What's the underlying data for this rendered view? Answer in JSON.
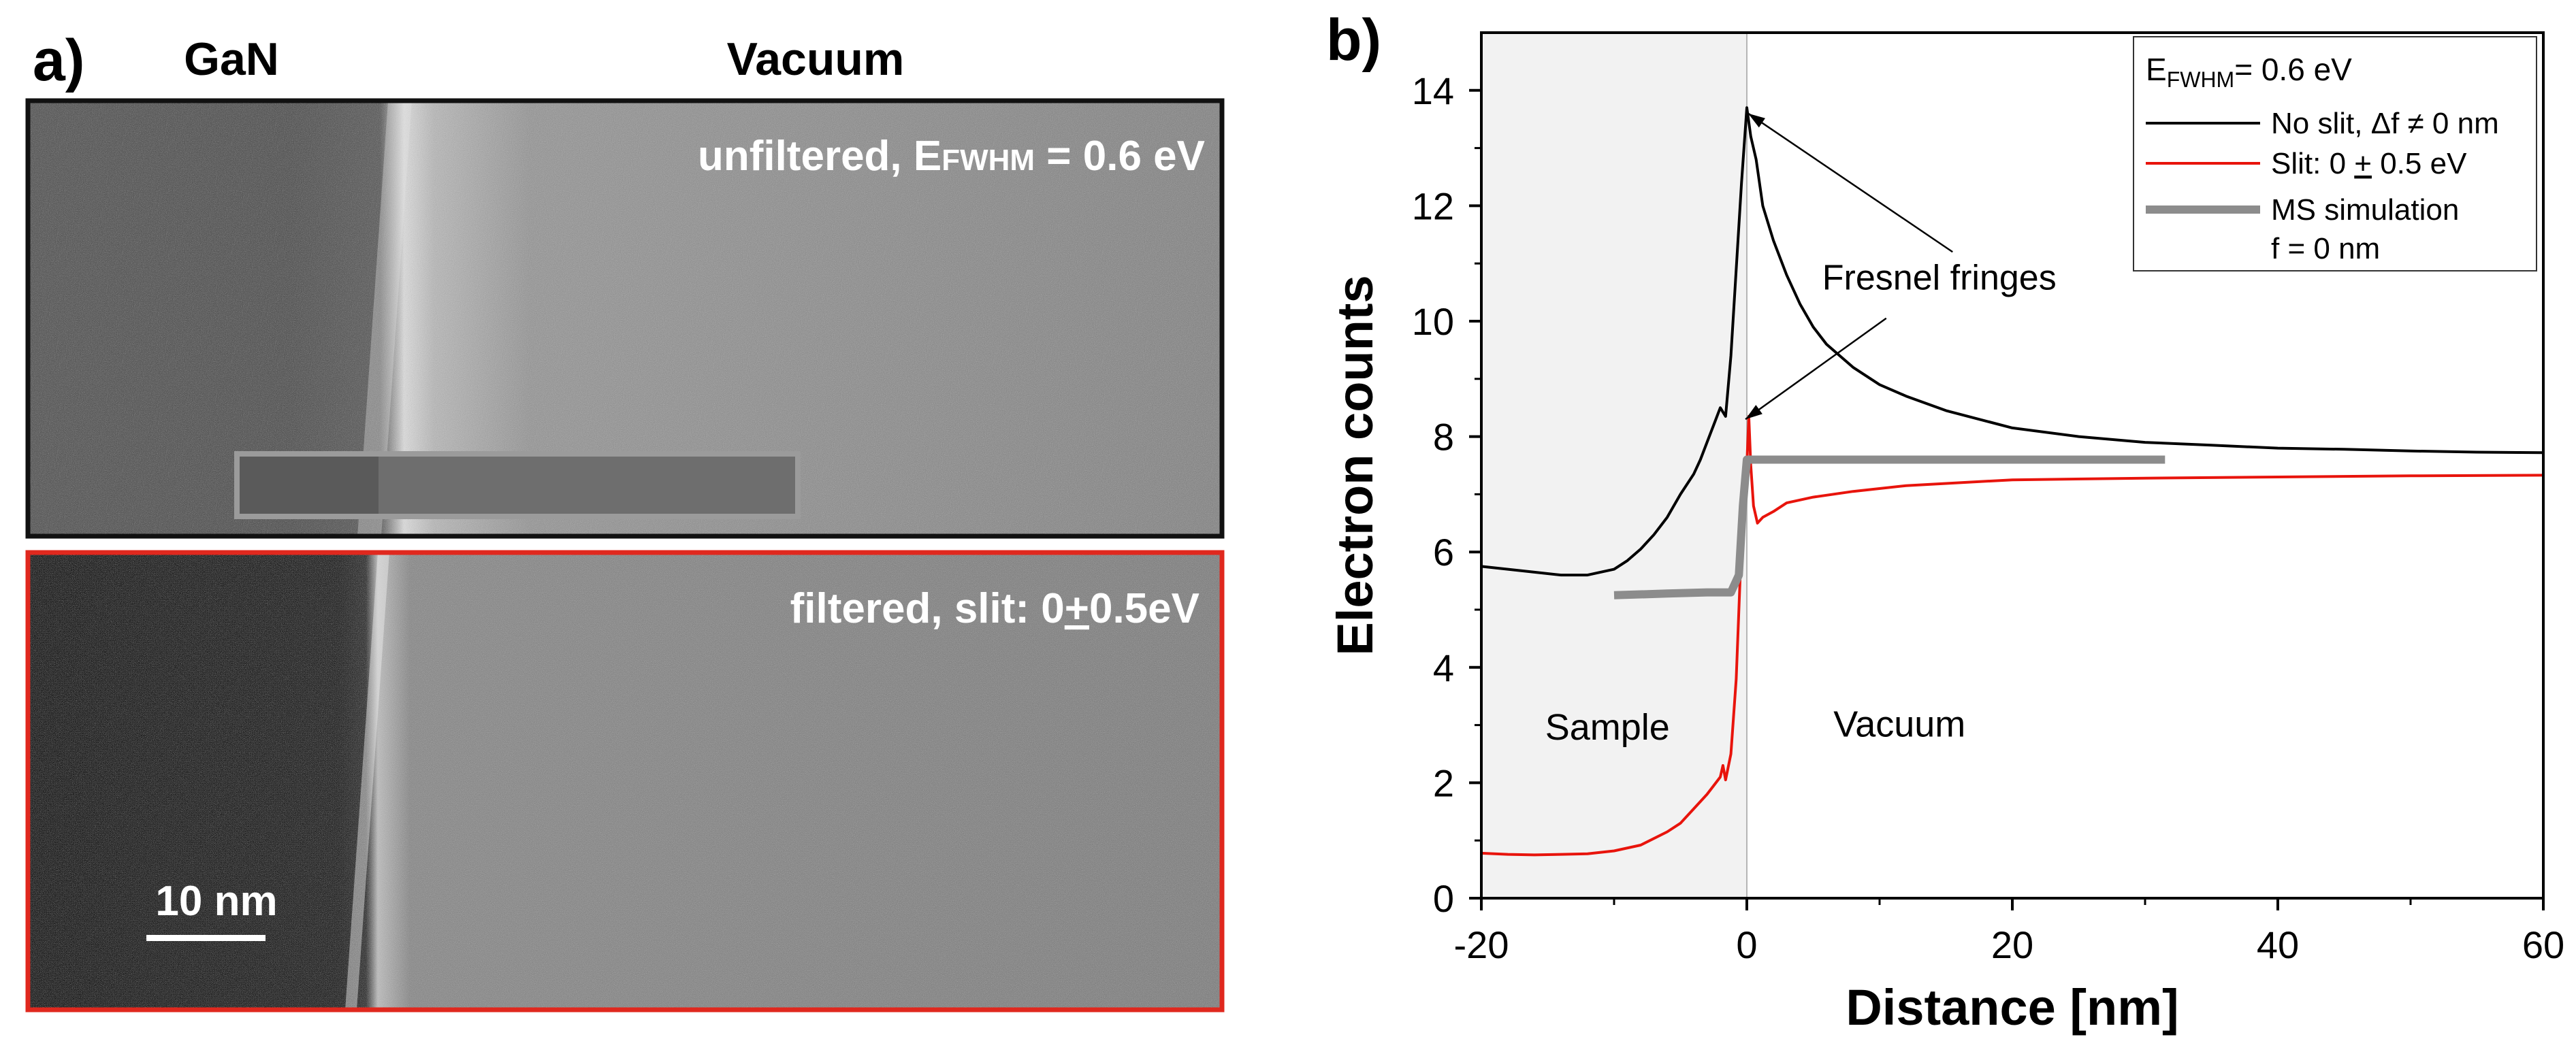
{
  "panel_a": {
    "label": "a)",
    "header_left": "GaN",
    "header_right": "Vacuum",
    "top_image": {
      "caption_prefix": "unfiltered, E",
      "caption_sub": "FWHM",
      "caption_suffix": " = 0.6 eV",
      "border_color": "#111111"
    },
    "bottom_image": {
      "caption_prefix": "filtered,  slit: 0",
      "caption_pm": "+",
      "caption_suffix": "0.5eV",
      "border_color": "#e0281e"
    },
    "scale_bar": "10 nm"
  },
  "chart_data": {
    "type": "line",
    "panel_label": "b)",
    "xlabel": "Distance [nm]",
    "ylabel": "Electron counts",
    "xlim": [
      -20,
      60
    ],
    "ylim": [
      0,
      15
    ],
    "xticks": [
      -20,
      0,
      20,
      40,
      60
    ],
    "yticks": [
      0,
      2,
      4,
      6,
      8,
      10,
      12,
      14
    ],
    "shaded_region": {
      "x": [
        -20,
        0
      ],
      "label_left": "Sample",
      "label_right": "Vacuum"
    },
    "legend": {
      "title_prefix": "E",
      "title_sub": "FWHM",
      "title_suffix": "= 0.6 eV",
      "entries": [
        {
          "name": "No slit, Δf ≠ 0 nm",
          "color": "#000000"
        },
        {
          "name": "Slit: 0 ± 0.5 eV",
          "name_pre": "Slit: 0 ",
          "name_pm": "+",
          "name_post": " 0.5 eV",
          "color": "#e8140c"
        },
        {
          "name": "MS simulation",
          "extra": "f = 0 nm",
          "color": "#8c8c8c"
        }
      ]
    },
    "annotation": {
      "text": "Fresnel fringes",
      "arrows_to": [
        [
          0.1,
          13.6
        ],
        [
          -0.1,
          8.3
        ]
      ]
    },
    "series": [
      {
        "name": "No slit",
        "color": "#000000",
        "x": [
          -20,
          -18,
          -16,
          -14,
          -12,
          -10,
          -9,
          -8,
          -7,
          -6,
          -5,
          -4,
          -3.5,
          -3,
          -2.5,
          -2,
          -1.6,
          -1.2,
          -0.8,
          -0.4,
          0,
          0.3,
          0.7,
          1.2,
          2,
          3,
          4,
          5,
          6,
          8,
          10,
          12,
          15,
          20,
          25,
          30,
          35,
          40,
          45,
          50,
          55,
          60
        ],
        "y": [
          5.75,
          5.7,
          5.65,
          5.6,
          5.6,
          5.7,
          5.85,
          6.05,
          6.3,
          6.6,
          7.0,
          7.35,
          7.6,
          7.9,
          8.2,
          8.5,
          8.35,
          9.4,
          10.9,
          12.4,
          13.7,
          13.2,
          12.8,
          12.0,
          11.4,
          10.8,
          10.3,
          9.9,
          9.6,
          9.2,
          8.9,
          8.7,
          8.45,
          8.15,
          8.0,
          7.9,
          7.85,
          7.8,
          7.78,
          7.75,
          7.73,
          7.72
        ]
      },
      {
        "name": "Slit",
        "color": "#e8140c",
        "x": [
          -20,
          -18,
          -16,
          -14,
          -12,
          -10,
          -8,
          -6,
          -5,
          -4,
          -3,
          -2.5,
          -2,
          -1.8,
          -1.6,
          -1.2,
          -0.8,
          -0.5,
          -0.2,
          0,
          0.15,
          0.3,
          0.5,
          0.8,
          1.2,
          2,
          3,
          5,
          8,
          12,
          20,
          30,
          40,
          50,
          60
        ],
        "y": [
          0.78,
          0.76,
          0.75,
          0.76,
          0.77,
          0.82,
          0.92,
          1.15,
          1.3,
          1.55,
          1.8,
          1.95,
          2.1,
          2.3,
          2.05,
          2.5,
          3.8,
          5.6,
          7.0,
          7.5,
          8.35,
          7.5,
          6.8,
          6.5,
          6.6,
          6.7,
          6.85,
          6.95,
          7.05,
          7.15,
          7.25,
          7.28,
          7.3,
          7.32,
          7.33
        ]
      },
      {
        "name": "MS simulation",
        "color": "#8c8c8c",
        "x": [
          -10,
          -6,
          -3,
          -1.2,
          -0.6,
          -0.3,
          0,
          2,
          10,
          20,
          31.5
        ],
        "y": [
          5.25,
          5.28,
          5.3,
          5.3,
          5.6,
          6.8,
          7.6,
          7.6,
          7.6,
          7.6,
          7.6
        ]
      }
    ]
  }
}
